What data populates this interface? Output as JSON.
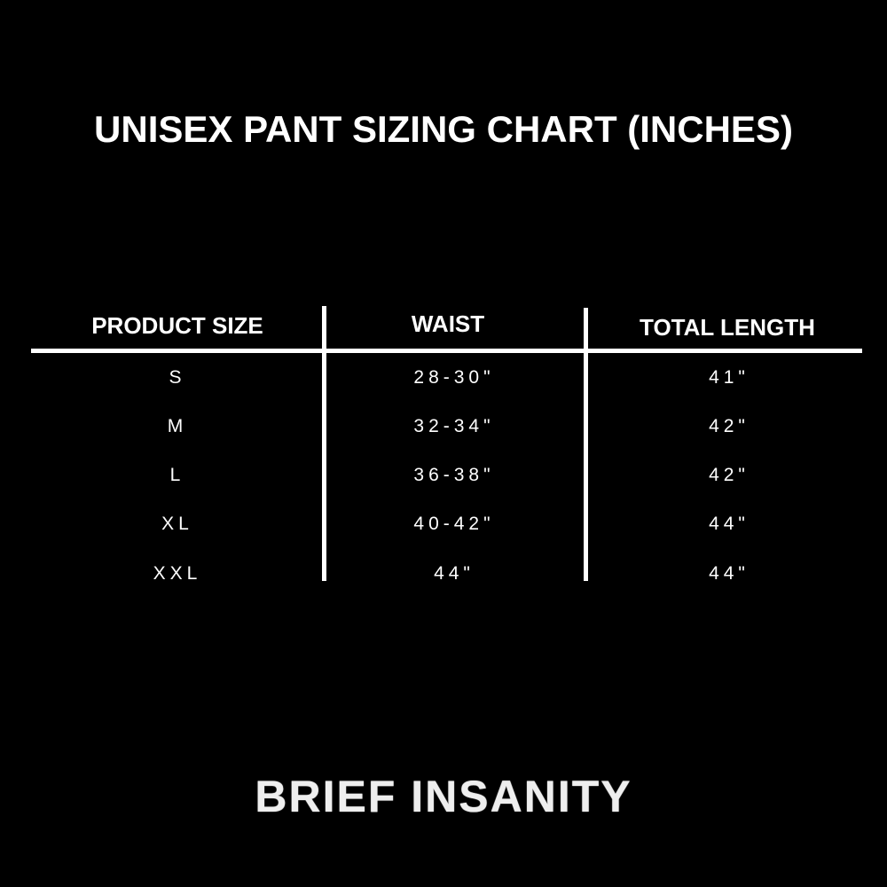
{
  "title": "UNISEX PANT SIZING CHART (INCHES)",
  "table": {
    "headers": [
      "PRODUCT SIZE",
      "WAIST",
      "TOTAL LENGTH"
    ],
    "rows": [
      [
        "S",
        "28-30\"",
        "41\""
      ],
      [
        "M",
        "32-34\"",
        "42\""
      ],
      [
        "L",
        "36-38\"",
        "42\""
      ],
      [
        "XL",
        "40-42\"",
        "44\""
      ],
      [
        "XXL",
        "44\"",
        "44\""
      ]
    ]
  },
  "brand": "BRIEF INSANITY"
}
